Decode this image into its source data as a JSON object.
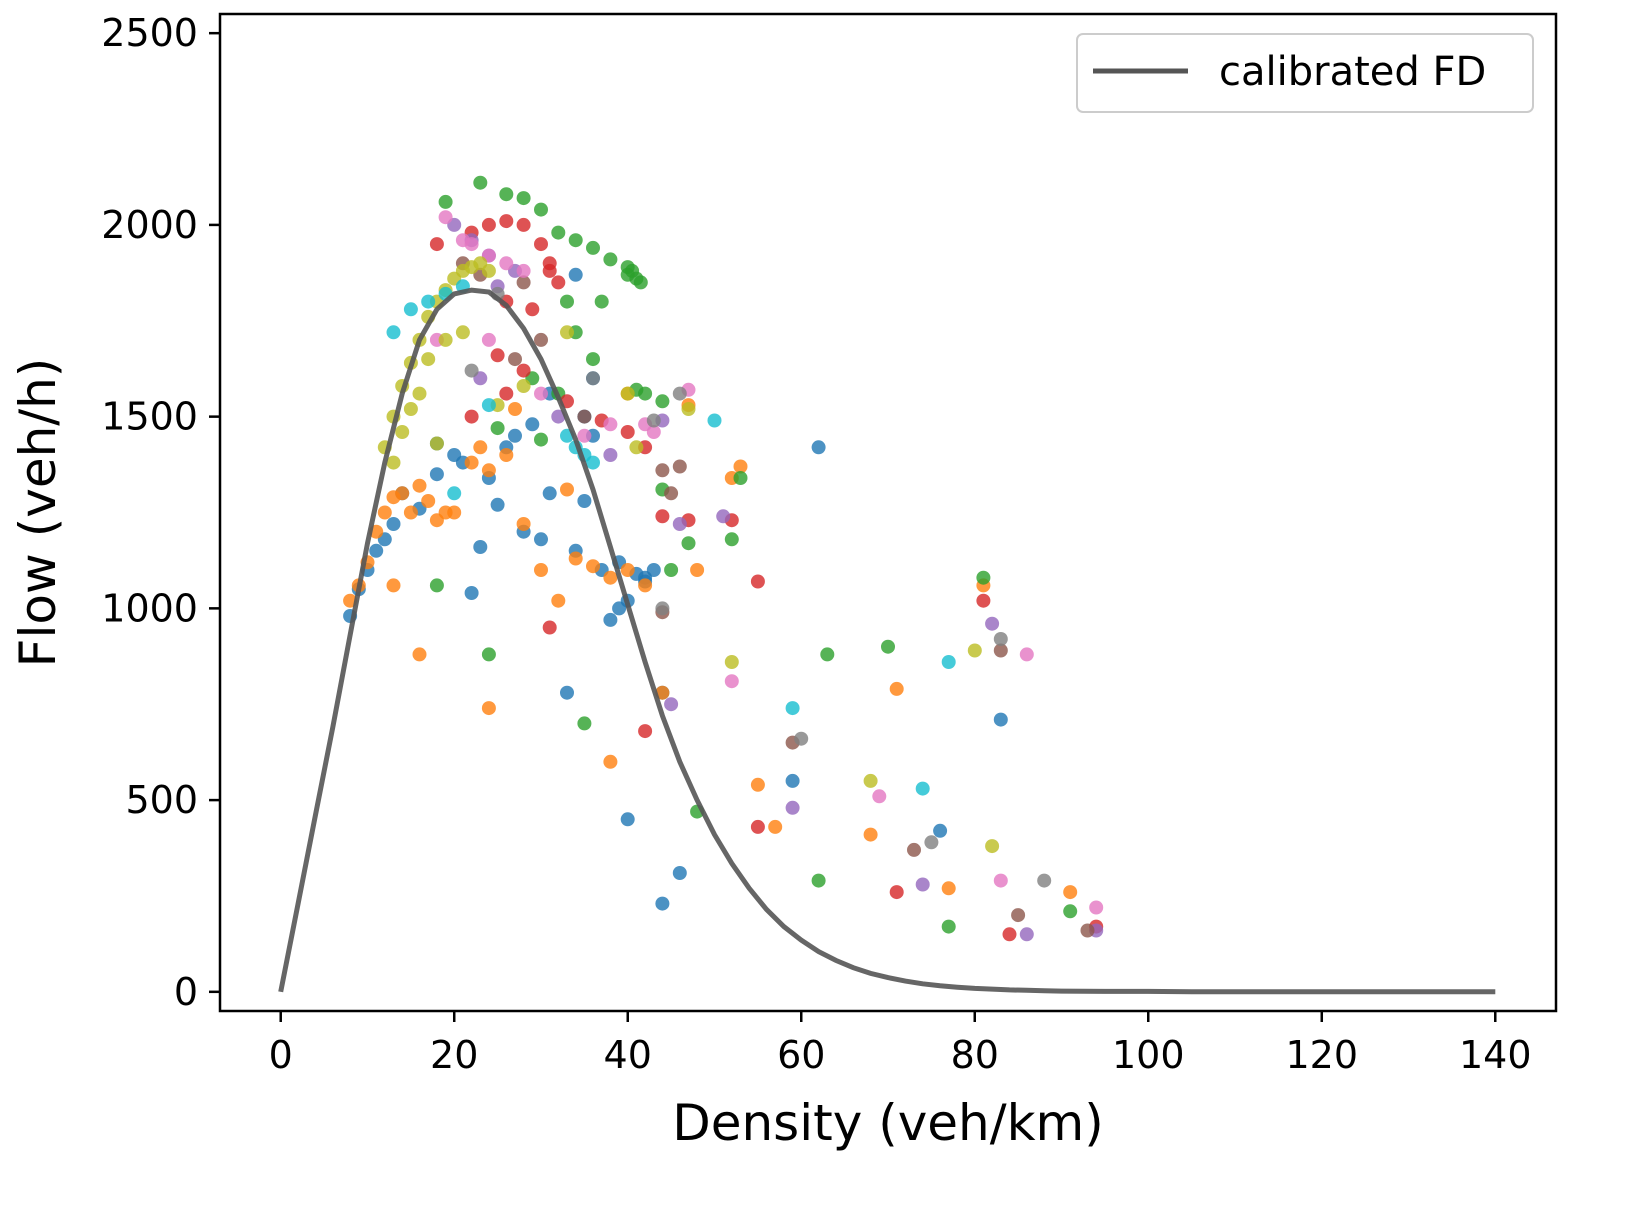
{
  "chart_data": {
    "type": "scatter",
    "title": "",
    "xlabel": "Density (veh/km)",
    "ylabel": "Flow (veh/h)",
    "xlim": [
      -7,
      147
    ],
    "ylim": [
      -50,
      2550
    ],
    "xticks": [
      0,
      20,
      40,
      60,
      80,
      100,
      120,
      140
    ],
    "yticks": [
      0,
      500,
      1000,
      1500,
      2000,
      2500
    ],
    "xtick_labels": [
      "0",
      "20",
      "40",
      "60",
      "80",
      "100",
      "120",
      "140"
    ],
    "ytick_labels": [
      "0",
      "500",
      "1000",
      "1500",
      "2000",
      "2500"
    ],
    "grid": false,
    "legend": {
      "position": "top-right",
      "entries": [
        "calibrated FD"
      ]
    },
    "colors": {
      "blue": "#1f77b4",
      "orange": "#ff7f0e",
      "green": "#2ca02c",
      "red": "#d62728",
      "purple": "#9467bd",
      "brown": "#8c564b",
      "pink": "#e377c2",
      "gray": "#7f7f7f",
      "olive": "#bcbd22",
      "cyan": "#17becf",
      "line": "#555555"
    },
    "line_series": {
      "name": "calibrated FD",
      "x": [
        0,
        2,
        4,
        6,
        8,
        10,
        12,
        14,
        16,
        18,
        20,
        22,
        24,
        26,
        28,
        30,
        32,
        34,
        36,
        38,
        40,
        42,
        44,
        46,
        48,
        50,
        52,
        54,
        56,
        58,
        60,
        62,
        64,
        66,
        68,
        70,
        72,
        74,
        76,
        78,
        80,
        82,
        84,
        86,
        88,
        90,
        95,
        100,
        105,
        110,
        120,
        130,
        140
      ],
      "y": [
        0,
        230,
        460,
        690,
        930,
        1170,
        1380,
        1560,
        1700,
        1780,
        1820,
        1830,
        1825,
        1790,
        1730,
        1650,
        1550,
        1440,
        1310,
        1160,
        1010,
        860,
        720,
        600,
        500,
        410,
        335,
        270,
        215,
        170,
        135,
        105,
        82,
        63,
        48,
        37,
        28,
        21,
        16,
        12,
        9,
        7,
        5,
        4,
        3,
        2,
        1,
        1,
        0,
        0,
        0,
        0,
        0
      ]
    },
    "scatter_series": [
      {
        "name": "blue",
        "color": "#1f77b4",
        "points": [
          [
            8,
            980
          ],
          [
            9,
            1050
          ],
          [
            10,
            1100
          ],
          [
            11,
            1150
          ],
          [
            12,
            1180
          ],
          [
            13,
            1220
          ],
          [
            14,
            1300
          ],
          [
            16,
            1260
          ],
          [
            18,
            1350
          ],
          [
            20,
            1400
          ],
          [
            22,
            1040
          ],
          [
            23,
            1160
          ],
          [
            25,
            1270
          ],
          [
            28,
            1200
          ],
          [
            30,
            1180
          ],
          [
            31,
            1300
          ],
          [
            33,
            780
          ],
          [
            34,
            1150
          ],
          [
            35,
            1280
          ],
          [
            36,
            1600
          ],
          [
            37,
            1100
          ],
          [
            38,
            970
          ],
          [
            39,
            1000
          ],
          [
            40,
            1020
          ],
          [
            41,
            1090
          ],
          [
            42,
            1080
          ],
          [
            43,
            1100
          ],
          [
            44,
            780
          ],
          [
            44,
            230
          ],
          [
            46,
            310
          ],
          [
            40,
            450
          ],
          [
            59,
            550
          ],
          [
            62,
            1420
          ],
          [
            76,
            420
          ],
          [
            83,
            710
          ],
          [
            34,
            1870
          ],
          [
            35,
            1500
          ],
          [
            36,
            1450
          ],
          [
            27,
            1450
          ],
          [
            21,
            1380
          ],
          [
            18,
            1430
          ],
          [
            24,
            1340
          ],
          [
            26,
            1420
          ],
          [
            31,
            1560
          ],
          [
            29,
            1480
          ],
          [
            42,
            1070
          ],
          [
            39,
            1120
          ]
        ]
      },
      {
        "name": "orange",
        "color": "#ff7f0e",
        "points": [
          [
            8,
            1020
          ],
          [
            9,
            1060
          ],
          [
            10,
            1120
          ],
          [
            11,
            1200
          ],
          [
            12,
            1250
          ],
          [
            13,
            1290
          ],
          [
            14,
            1300
          ],
          [
            15,
            1250
          ],
          [
            16,
            1320
          ],
          [
            17,
            1280
          ],
          [
            18,
            1230
          ],
          [
            20,
            1250
          ],
          [
            22,
            1380
          ],
          [
            24,
            1360
          ],
          [
            26,
            1400
          ],
          [
            28,
            1220
          ],
          [
            30,
            1100
          ],
          [
            32,
            1020
          ],
          [
            34,
            1130
          ],
          [
            36,
            1110
          ],
          [
            38,
            1080
          ],
          [
            40,
            1100
          ],
          [
            42,
            1060
          ],
          [
            44,
            780
          ],
          [
            16,
            880
          ],
          [
            24,
            740
          ],
          [
            38,
            600
          ],
          [
            48,
            1100
          ],
          [
            53,
            1370
          ],
          [
            52,
            1340
          ],
          [
            55,
            540
          ],
          [
            57,
            430
          ],
          [
            68,
            410
          ],
          [
            71,
            790
          ],
          [
            77,
            270
          ],
          [
            81,
            1060
          ],
          [
            91,
            260
          ],
          [
            13,
            1060
          ],
          [
            19,
            1250
          ],
          [
            23,
            1420
          ],
          [
            27,
            1520
          ],
          [
            40,
            1560
          ],
          [
            47,
            1530
          ],
          [
            33,
            1310
          ]
        ]
      },
      {
        "name": "green",
        "color": "#2ca02c",
        "points": [
          [
            19,
            2060
          ],
          [
            23,
            2110
          ],
          [
            26,
            2080
          ],
          [
            28,
            2070
          ],
          [
            30,
            2040
          ],
          [
            32,
            1980
          ],
          [
            34,
            1960
          ],
          [
            36,
            1940
          ],
          [
            38,
            1910
          ],
          [
            40,
            1890
          ],
          [
            40.5,
            1880
          ],
          [
            41,
            1860
          ],
          [
            41.5,
            1850
          ],
          [
            40,
            1870
          ],
          [
            33,
            1800
          ],
          [
            34,
            1720
          ],
          [
            37,
            1800
          ],
          [
            36,
            1650
          ],
          [
            41,
            1570
          ],
          [
            42,
            1560
          ],
          [
            44,
            1540
          ],
          [
            47,
            1170
          ],
          [
            53,
            1340
          ],
          [
            52,
            1180
          ],
          [
            45,
            1100
          ],
          [
            18,
            1060
          ],
          [
            24,
            880
          ],
          [
            35,
            700
          ],
          [
            48,
            470
          ],
          [
            62,
            290
          ],
          [
            63,
            880
          ],
          [
            70,
            900
          ],
          [
            77,
            170
          ],
          [
            81,
            1080
          ],
          [
            91,
            210
          ],
          [
            32,
            1560
          ],
          [
            29,
            1600
          ],
          [
            30,
            1440
          ],
          [
            25,
            1470
          ],
          [
            44,
            1310
          ]
        ]
      },
      {
        "name": "red",
        "color": "#d62728",
        "points": [
          [
            18,
            1950
          ],
          [
            22,
            1980
          ],
          [
            24,
            2000
          ],
          [
            26,
            2010
          ],
          [
            28,
            2000
          ],
          [
            30,
            1950
          ],
          [
            31,
            1900
          ],
          [
            31,
            1880
          ],
          [
            32,
            1850
          ],
          [
            26,
            1800
          ],
          [
            29,
            1780
          ],
          [
            25,
            1660
          ],
          [
            28,
            1620
          ],
          [
            33,
            1540
          ],
          [
            37,
            1490
          ],
          [
            40,
            1460
          ],
          [
            42,
            1420
          ],
          [
            44,
            1240
          ],
          [
            47,
            1230
          ],
          [
            52,
            1230
          ],
          [
            55,
            1070
          ],
          [
            42,
            680
          ],
          [
            31,
            950
          ],
          [
            55,
            430
          ],
          [
            71,
            260
          ],
          [
            81,
            1020
          ],
          [
            84,
            150
          ],
          [
            94,
            170
          ],
          [
            26,
            1560
          ],
          [
            22,
            1500
          ]
        ]
      },
      {
        "name": "purple",
        "color": "#9467bd",
        "points": [
          [
            20,
            2000
          ],
          [
            22,
            1960
          ],
          [
            24,
            1920
          ],
          [
            27,
            1880
          ],
          [
            25,
            1840
          ],
          [
            44,
            1490
          ],
          [
            46,
            1220
          ],
          [
            51,
            1240
          ],
          [
            45,
            750
          ],
          [
            59,
            480
          ],
          [
            74,
            280
          ],
          [
            82,
            960
          ],
          [
            86,
            150
          ],
          [
            94,
            160
          ],
          [
            32,
            1500
          ],
          [
            38,
            1400
          ],
          [
            23,
            1600
          ]
        ]
      },
      {
        "name": "brown",
        "color": "#8c564b",
        "points": [
          [
            21,
            1900
          ],
          [
            23,
            1870
          ],
          [
            28,
            1850
          ],
          [
            30,
            1700
          ],
          [
            44,
            1360
          ],
          [
            46,
            1370
          ],
          [
            45,
            1300
          ],
          [
            44,
            990
          ],
          [
            59,
            650
          ],
          [
            73,
            370
          ],
          [
            83,
            890
          ],
          [
            85,
            200
          ],
          [
            93,
            160
          ],
          [
            35,
            1500
          ],
          [
            27,
            1650
          ]
        ]
      },
      {
        "name": "pink",
        "color": "#e377c2",
        "points": [
          [
            19,
            2020
          ],
          [
            21,
            1960
          ],
          [
            22,
            1950
          ],
          [
            24,
            1920
          ],
          [
            26,
            1900
          ],
          [
            28,
            1880
          ],
          [
            24,
            1700
          ],
          [
            30,
            1560
          ],
          [
            42,
            1480
          ],
          [
            43,
            1460
          ],
          [
            47,
            1570
          ],
          [
            52,
            810
          ],
          [
            69,
            510
          ],
          [
            83,
            290
          ],
          [
            86,
            880
          ],
          [
            94,
            220
          ],
          [
            35,
            1450
          ],
          [
            38,
            1480
          ],
          [
            18,
            1700
          ]
        ]
      },
      {
        "name": "gray",
        "color": "#7f7f7f",
        "points": [
          [
            36,
            1600
          ],
          [
            46,
            1560
          ],
          [
            43,
            1490
          ],
          [
            44,
            1000
          ],
          [
            60,
            660
          ],
          [
            75,
            390
          ],
          [
            83,
            920
          ],
          [
            88,
            290
          ],
          [
            25,
            1820
          ],
          [
            22,
            1620
          ]
        ]
      },
      {
        "name": "olive",
        "color": "#bcbd22",
        "points": [
          [
            12,
            1420
          ],
          [
            13,
            1500
          ],
          [
            14,
            1580
          ],
          [
            15,
            1640
          ],
          [
            16,
            1700
          ],
          [
            17,
            1760
          ],
          [
            18,
            1800
          ],
          [
            19,
            1830
          ],
          [
            20,
            1860
          ],
          [
            21,
            1880
          ],
          [
            22,
            1890
          ],
          [
            23,
            1900
          ],
          [
            24,
            1880
          ],
          [
            17,
            1650
          ],
          [
            19,
            1700
          ],
          [
            21,
            1720
          ],
          [
            16,
            1560
          ],
          [
            15,
            1520
          ],
          [
            14,
            1460
          ],
          [
            13,
            1380
          ],
          [
            18,
            1430
          ],
          [
            40,
            1560
          ],
          [
            47,
            1520
          ],
          [
            41,
            1420
          ],
          [
            33,
            1720
          ],
          [
            52,
            860
          ],
          [
            68,
            550
          ],
          [
            80,
            890
          ],
          [
            82,
            380
          ],
          [
            28,
            1580
          ],
          [
            25,
            1530
          ]
        ]
      },
      {
        "name": "cyan",
        "color": "#17becf",
        "points": [
          [
            13,
            1720
          ],
          [
            15,
            1780
          ],
          [
            17,
            1800
          ],
          [
            19,
            1820
          ],
          [
            21,
            1840
          ],
          [
            33,
            1450
          ],
          [
            34,
            1420
          ],
          [
            35,
            1400
          ],
          [
            36,
            1380
          ],
          [
            50,
            1490
          ],
          [
            59,
            740
          ],
          [
            74,
            530
          ],
          [
            77,
            860
          ],
          [
            20,
            1300
          ],
          [
            24,
            1530
          ]
        ]
      }
    ]
  }
}
